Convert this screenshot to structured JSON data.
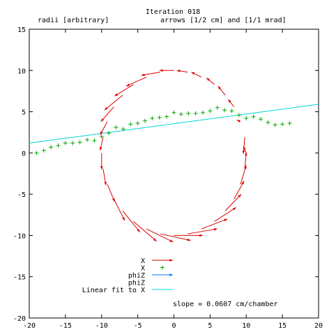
{
  "title": "Iteration 018",
  "subtitle_left": "radii [arbitrary]",
  "subtitle_right": "arrows [1/2 cm] and [1/1 mrad]",
  "annotation": "slope = 0.0607 cm/chamber",
  "chart_data": {
    "type": "scatter",
    "xlim": [
      -20,
      20
    ],
    "ylim": [
      -20,
      15
    ],
    "xticks": [
      -20,
      -15,
      -10,
      -5,
      0,
      5,
      10,
      15,
      20
    ],
    "yticks": [
      -20,
      -15,
      -10,
      -5,
      0,
      5,
      10,
      15
    ],
    "grid": false,
    "legend_position": "bottom-center",
    "colors": {
      "x_arrows": "#dd0000",
      "x_points": "#00aa00",
      "phiz_arrows": "#0077ee",
      "fit": "#00d4d4"
    },
    "legend": [
      "X",
      "X",
      "phiZ",
      "phiZ",
      "Linear fit to X"
    ],
    "series": [
      {
        "name": "X",
        "style": "arrows",
        "circle": {
          "center": [
            0,
            0
          ],
          "radius": 10
        },
        "arrows": [
          [
            10.0,
            0.0,
            -0.4,
            0.8
          ],
          [
            9.8,
            1.9,
            -0.2,
            -2.0
          ],
          [
            9.2,
            3.8,
            -0.5,
            0.2
          ],
          [
            8.3,
            5.6,
            -0.8,
            0.9
          ],
          [
            7.1,
            7.0,
            -1.0,
            1.1
          ],
          [
            5.6,
            8.3,
            -1.1,
            0.8
          ],
          [
            3.8,
            9.2,
            -1.4,
            0.6
          ],
          [
            1.9,
            9.8,
            -1.5,
            0.2
          ],
          [
            0.0,
            10.0,
            -2.0,
            0.0
          ],
          [
            -1.9,
            9.8,
            -2.6,
            -0.4
          ],
          [
            -3.8,
            9.2,
            -2.8,
            -1.1
          ],
          [
            -5.6,
            8.3,
            -2.6,
            -1.4
          ],
          [
            -7.1,
            7.0,
            -2.5,
            -1.8
          ],
          [
            -8.3,
            5.6,
            -1.8,
            -1.8
          ],
          [
            -9.2,
            3.8,
            -1.0,
            -1.6
          ],
          [
            -9.8,
            1.9,
            -0.4,
            -1.6
          ],
          [
            -10.0,
            0.0,
            0.0,
            -2.0
          ],
          [
            -9.8,
            -1.9,
            0.4,
            -2.0
          ],
          [
            -9.2,
            -3.8,
            1.0,
            -2.1
          ],
          [
            -8.3,
            -5.6,
            1.5,
            -2.6
          ],
          [
            -7.1,
            -7.0,
            2.4,
            -2.6
          ],
          [
            -5.6,
            -8.3,
            3.2,
            -2.4
          ],
          [
            -3.8,
            -9.2,
            3.7,
            -1.6
          ],
          [
            -1.9,
            -9.8,
            4.2,
            -0.8
          ],
          [
            0.0,
            -10.0,
            4.0,
            0.0
          ],
          [
            1.9,
            -9.8,
            4.1,
            0.6
          ],
          [
            3.8,
            -9.2,
            3.6,
            1.2
          ],
          [
            5.6,
            -8.3,
            3.0,
            1.7
          ],
          [
            7.1,
            -7.0,
            2.2,
            2.0
          ],
          [
            8.3,
            -5.6,
            1.4,
            2.2
          ],
          [
            9.2,
            -3.8,
            0.8,
            2.3
          ],
          [
            9.8,
            -1.9,
            0.2,
            2.0
          ]
        ]
      },
      {
        "name": "X",
        "style": "points",
        "x": [
          -19,
          -18,
          -17,
          -16,
          -15,
          -14,
          -13,
          -12,
          -11,
          -10,
          -9,
          -8,
          -7,
          -6,
          -5,
          -4,
          -3,
          -2,
          -1,
          0,
          1,
          2,
          3,
          4,
          5,
          6,
          7,
          8,
          9,
          10,
          11,
          12,
          13,
          14,
          15,
          16
        ],
        "y": [
          0.0,
          0.3,
          0.7,
          0.9,
          1.2,
          1.2,
          1.3,
          1.6,
          1.5,
          2.0,
          2.4,
          3.1,
          2.9,
          3.5,
          3.6,
          3.9,
          4.2,
          4.3,
          4.4,
          4.9,
          4.7,
          4.8,
          4.8,
          4.9,
          5.1,
          5.5,
          5.2,
          5.1,
          4.6,
          4.2,
          4.4,
          4.1,
          3.7,
          3.4,
          3.5,
          3.6
        ]
      },
      {
        "name": "phiZ",
        "style": "arrows",
        "arrows": []
      },
      {
        "name": "phiZ",
        "style": "points",
        "x": [],
        "y": []
      },
      {
        "name": "Linear fit to X",
        "style": "line",
        "x": [
          -20,
          20
        ],
        "y": [
          1.2,
          5.9
        ]
      }
    ]
  }
}
